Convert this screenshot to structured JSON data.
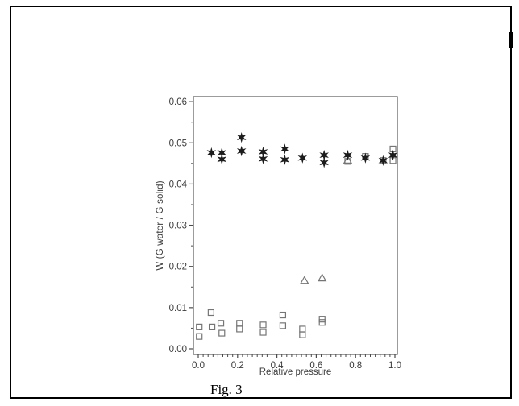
{
  "page": {
    "caption": "Fig. 3"
  },
  "chart_data": {
    "type": "scatter",
    "title": "",
    "xlabel": "Relative pressure",
    "ylabel": "W (G water / G solid)",
    "xlim": [
      -0.0246,
      1.0123
    ],
    "ylim": [
      -0.00137,
      0.0612
    ],
    "grid": false,
    "legend": "none",
    "x_ticks": [
      0.0,
      0.2,
      0.4,
      0.6,
      0.8,
      1.0
    ],
    "x_tick_labels": [
      "0.0",
      "0.2",
      "0.4",
      "0.6",
      "0.8",
      "1.0"
    ],
    "x_minor_step": 0.025,
    "y_ticks": [
      0.0,
      0.01,
      0.02,
      0.03,
      0.04,
      0.05,
      0.06
    ],
    "y_tick_labels": [
      "0.00",
      "0.01",
      "0.02",
      "0.03",
      "0.04",
      "0.05",
      "0.06"
    ],
    "y_minor_step": 0.005,
    "axis_color": "#666666",
    "tick_color": "#4a4a4a",
    "label_color": "#3a3a3a",
    "series": [
      {
        "name": "open-square",
        "marker": "square",
        "color": "#757575",
        "filled": false,
        "points": [
          [
            0.005,
            0.0053
          ],
          [
            0.005,
            0.003
          ],
          [
            0.065,
            0.0088
          ],
          [
            0.07,
            0.0053
          ],
          [
            0.115,
            0.0062
          ],
          [
            0.12,
            0.0038
          ],
          [
            0.21,
            0.0062
          ],
          [
            0.21,
            0.0048
          ],
          [
            0.33,
            0.0058
          ],
          [
            0.33,
            0.004
          ],
          [
            0.43,
            0.0082
          ],
          [
            0.43,
            0.0056
          ],
          [
            0.53,
            0.0048
          ],
          [
            0.53,
            0.0034
          ],
          [
            0.63,
            0.0072
          ],
          [
            0.63,
            0.0064
          ],
          [
            0.76,
            0.0455
          ],
          [
            0.85,
            0.0467
          ],
          [
            0.94,
            0.0457
          ],
          [
            0.99,
            0.0485
          ],
          [
            0.99,
            0.0457
          ]
        ]
      },
      {
        "name": "open-triangle",
        "marker": "triangle",
        "color": "#757575",
        "filled": false,
        "points": [
          [
            0.54,
            0.0166
          ],
          [
            0.63,
            0.0172
          ],
          [
            0.76,
            0.0458
          ]
        ]
      },
      {
        "name": "filled-star",
        "marker": "star6",
        "color": "#1c1c1c",
        "filled": true,
        "points": [
          [
            0.067,
            0.0476
          ],
          [
            0.12,
            0.0476
          ],
          [
            0.12,
            0.046
          ],
          [
            0.22,
            0.0513
          ],
          [
            0.22,
            0.048
          ],
          [
            0.33,
            0.0478
          ],
          [
            0.33,
            0.0461
          ],
          [
            0.44,
            0.0485
          ],
          [
            0.44,
            0.0459
          ],
          [
            0.53,
            0.0463
          ],
          [
            0.64,
            0.047
          ],
          [
            0.64,
            0.0452
          ],
          [
            0.76,
            0.047
          ],
          [
            0.85,
            0.0463
          ],
          [
            0.94,
            0.0457
          ],
          [
            0.99,
            0.047
          ]
        ]
      }
    ]
  }
}
